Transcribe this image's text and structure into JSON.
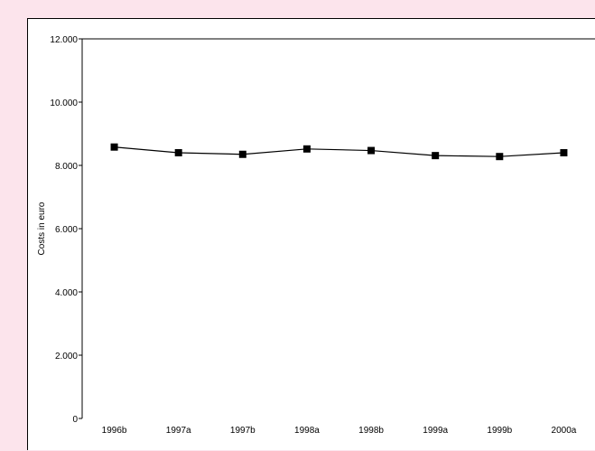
{
  "page": {
    "background": "#fce4ec",
    "panel_background": "#ffffff"
  },
  "chart_data": {
    "type": "line",
    "title": "",
    "xlabel": "",
    "ylabel": "Costs in euro",
    "categories": [
      "1996b",
      "1997a",
      "1997b",
      "1998a",
      "1998b",
      "1999a",
      "1999b",
      "2000a"
    ],
    "series": [
      {
        "values": [
          8580,
          8400,
          8350,
          8520,
          8470,
          8310,
          8280,
          8400
        ],
        "color": "#000000",
        "marker": "square"
      }
    ],
    "ylim": [
      0,
      12000
    ],
    "yticks": [
      0,
      2000,
      4000,
      6000,
      8000,
      10000,
      12000
    ],
    "ytick_labels": [
      "0",
      "2.000",
      "4.000",
      "6.000",
      "8.000",
      "10.000",
      "12.000"
    ],
    "grid": false,
    "legend": "none"
  }
}
